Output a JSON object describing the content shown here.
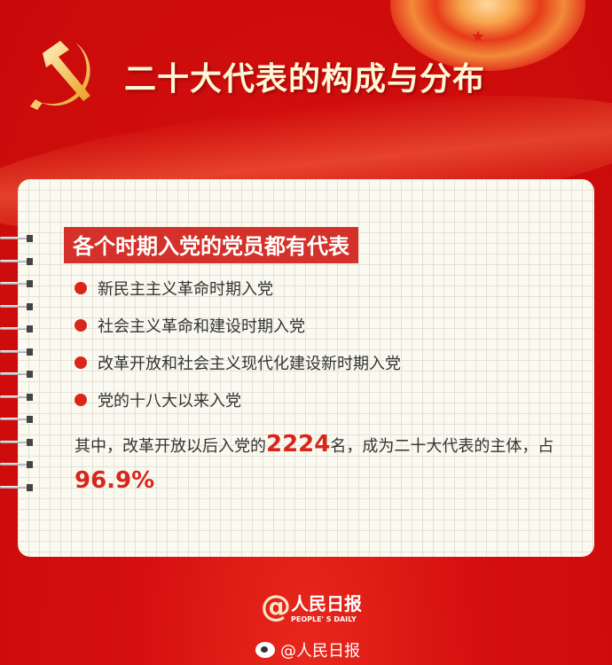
{
  "header": {
    "title": "二十大代表的构成与分布",
    "emblem": "hammer-sickle-emblem"
  },
  "card": {
    "subtitle": "各个时期入党的党员都有代表",
    "items": [
      {
        "label": "新民主主义革命时期入党"
      },
      {
        "label": "社会主义革命和建设时期入党"
      },
      {
        "label": "改革开放和社会主义现代化建设新时期入党"
      },
      {
        "label": "党的十八大以来入党"
      }
    ],
    "summary": {
      "part1": "其中，改革开放以后入党的",
      "count": "2224",
      "part2": "名，成为二十大代表的主体，占",
      "percent": "96.9%"
    }
  },
  "footer": {
    "logo_cn": "人民日报",
    "logo_en": "PEOPLE' S DAILY",
    "weibo": "@人民日报"
  },
  "colors": {
    "background": "#d50f0f",
    "accent": "#d9261c",
    "card": "#fbfaf0",
    "title": "#fff7d6"
  }
}
